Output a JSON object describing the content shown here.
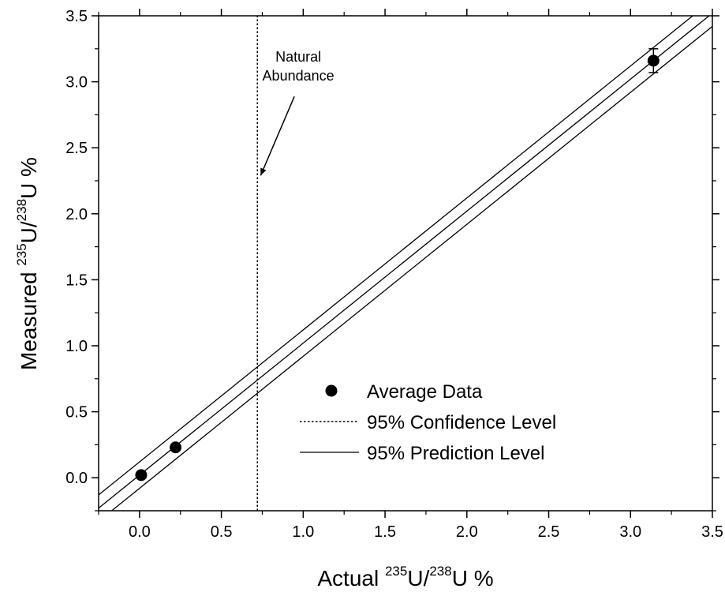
{
  "chart_data": {
    "type": "scatter",
    "xlabel": {
      "prefix": "Actual ",
      "sup1": "235",
      "mid": "U/",
      "sup2": "238",
      "suffix": "U %"
    },
    "ylabel": {
      "prefix": "Measured ",
      "sup1": "235",
      "mid": "U/",
      "sup2": "238",
      "suffix": "U %"
    },
    "xlim": [
      -0.25,
      3.5
    ],
    "ylim": [
      -0.25,
      3.5
    ],
    "x_ticks": [
      "0.0",
      "0.5",
      "1.0",
      "1.5",
      "2.0",
      "2.5",
      "3.0",
      "3.5"
    ],
    "y_ticks": [
      "0.0",
      "0.5",
      "1.0",
      "1.5",
      "2.0",
      "2.5",
      "3.0",
      "3.5"
    ],
    "grid": false,
    "series": [
      {
        "name": "Average Data",
        "kind": "points",
        "x": [
          0.01,
          0.22,
          3.14
        ],
        "y": [
          0.02,
          0.23,
          3.16
        ],
        "yerr": [
          0.0,
          0.0,
          0.09
        ]
      },
      {
        "name": "95% Confidence Level",
        "kind": "dotted-line",
        "x": [
          0.72,
          0.72
        ],
        "y": [
          -0.25,
          3.5
        ]
      },
      {
        "name": "95% Prediction Level",
        "kind": "lines",
        "fit": {
          "x": [
            -0.25,
            3.5
          ],
          "y": [
            -0.23,
            3.52
          ]
        },
        "upper": {
          "x": [
            -0.25,
            3.5
          ],
          "y": [
            -0.13,
            3.62
          ]
        },
        "lower": {
          "x": [
            -0.25,
            3.5
          ],
          "y": [
            -0.33,
            3.42
          ]
        }
      }
    ],
    "annotation": {
      "lines": [
        "Natural",
        "Abundance"
      ],
      "x": 0.97,
      "y": 3.08,
      "arrow_to": [
        0.74,
        2.29
      ]
    },
    "legend": {
      "placement": "lower-right"
    }
  }
}
